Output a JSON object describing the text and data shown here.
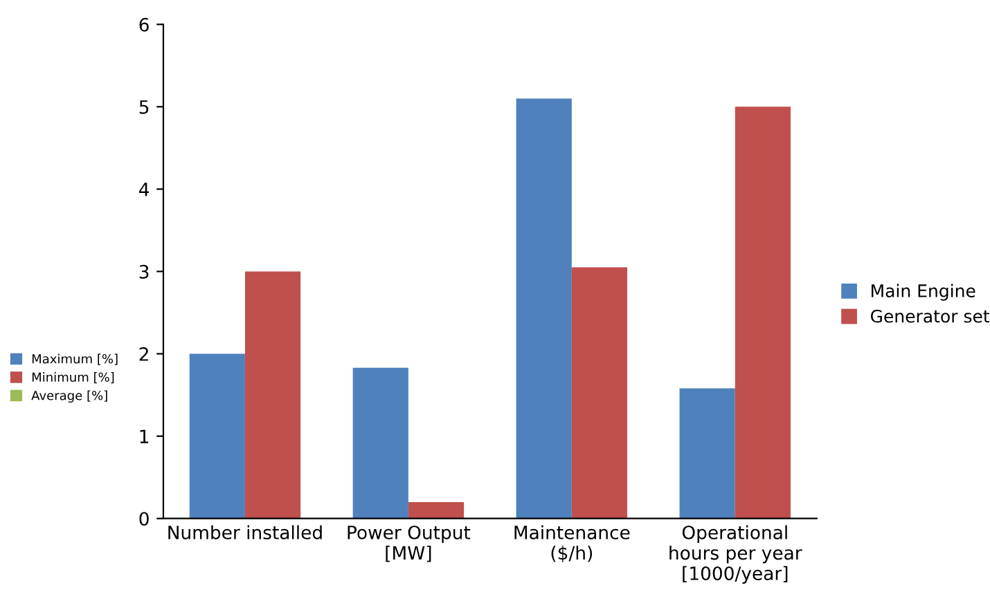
{
  "chart_data": [
    {
      "type": "bar",
      "categories": [
        "Number installed",
        "Power Output\n[MW]",
        "Maintenance\n($/h)",
        "Operational\nhours per year\n[1000/year]"
      ],
      "series": [
        {
          "name": "Main Engine",
          "color": "#4f81bd",
          "values": [
            2,
            1.83,
            5.1,
            1.58
          ]
        },
        {
          "name": "Generator set",
          "color": "#c0504d",
          "values": [
            3,
            0.2,
            3.05,
            5.0
          ]
        }
      ],
      "ylim": [
        0,
        6
      ],
      "yticks": [
        0,
        1,
        2,
        3,
        4,
        5,
        6
      ],
      "legend": "right"
    },
    {
      "type": "other",
      "legend": "left",
      "series": [
        {
          "name": "Maximum [%]",
          "color": "#4f81bd"
        },
        {
          "name": "Minimum [%]",
          "color": "#c0504d"
        },
        {
          "name": "Average [%]",
          "color": "#9bbb59"
        }
      ]
    }
  ]
}
